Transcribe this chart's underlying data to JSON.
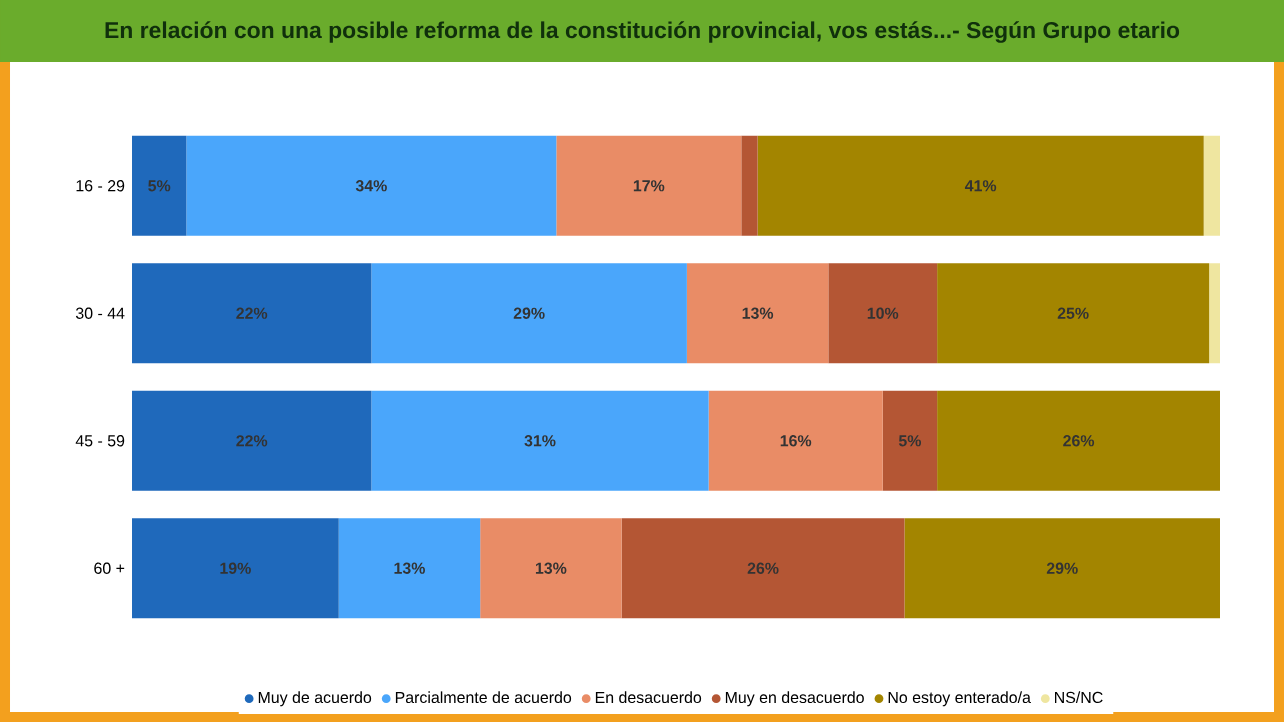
{
  "chart_data": {
    "type": "bar",
    "orientation": "horizontal",
    "stacked": true,
    "title": "En relación con una posible reforma de la constitución provincial, vos estás...- Según Grupo etario",
    "categories": [
      "16 - 29",
      "30 - 44",
      "45 - 59",
      "60 +"
    ],
    "tick_labels": "y",
    "grid": false,
    "legend": "bottom",
    "series": [
      {
        "name": "Muy de acuerdo",
        "color": "#1f69bb",
        "values": [
          5,
          22,
          22,
          19
        ],
        "value_labels": [
          "5%",
          "22%",
          "22%",
          "19%"
        ]
      },
      {
        "name": "Parcialmente de acuerdo",
        "color": "#4aa6fb",
        "values": [
          34,
          29,
          31,
          13
        ],
        "value_labels": [
          "34%",
          "29%",
          "31%",
          "13%"
        ]
      },
      {
        "name": "En desacuerdo",
        "color": "#e98c66",
        "values": [
          17,
          13,
          16,
          13
        ],
        "value_labels": [
          "17%",
          "13%",
          "16%",
          "13%"
        ]
      },
      {
        "name": "Muy en desacuerdo",
        "color": "#b45634",
        "values": [
          1.5,
          10,
          5,
          26
        ],
        "value_labels": [
          null,
          "10%",
          "5%",
          "26%"
        ]
      },
      {
        "name": "No estoy enterado/a",
        "color": "#a38500",
        "values": [
          41,
          25,
          26,
          29
        ],
        "value_labels": [
          "41%",
          "25%",
          "26%",
          "29%"
        ]
      },
      {
        "name": "NS/NC",
        "color": "#efe6a0",
        "values": [
          1.5,
          1,
          0,
          0
        ],
        "value_labels": [
          null,
          null,
          null,
          null
        ]
      }
    ]
  }
}
